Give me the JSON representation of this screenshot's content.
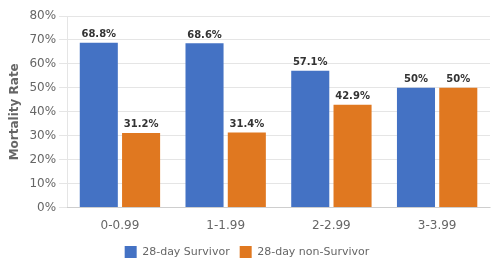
{
  "chart_data": {
    "type": "bar",
    "categories": [
      "0-0.99",
      "1-1.99",
      "2-2.99",
      "3-3.99"
    ],
    "series": [
      {
        "name": "28-day Survivor",
        "color": "#4472C4",
        "values": [
          68.8,
          68.6,
          57.1,
          50.0
        ],
        "value_labels": [
          "68.8%",
          "68.6%",
          "57.1%",
          "50%"
        ]
      },
      {
        "name": "28-day non-Survivor",
        "color": "#E07820",
        "values": [
          31.2,
          31.4,
          42.9,
          50.0
        ],
        "value_labels": [
          "31.2%",
          "31.4%",
          "42.9%",
          "50%"
        ]
      }
    ],
    "ylabel": "Mortality Rate",
    "ylim": [
      0,
      80
    ],
    "yticks": [
      {
        "value": 0,
        "label": "0%"
      },
      {
        "value": 10,
        "label": "10%"
      },
      {
        "value": 20,
        "label": "20%"
      },
      {
        "value": 30,
        "label": "30%"
      },
      {
        "value": 40,
        "label": "40%"
      },
      {
        "value": 50,
        "label": "50%"
      },
      {
        "value": 60,
        "label": "60%"
      },
      {
        "value": 70,
        "label": "70%"
      },
      {
        "value": 80,
        "label": "80%"
      }
    ],
    "grid": true,
    "legend": "bottom",
    "data_labels": true
  }
}
